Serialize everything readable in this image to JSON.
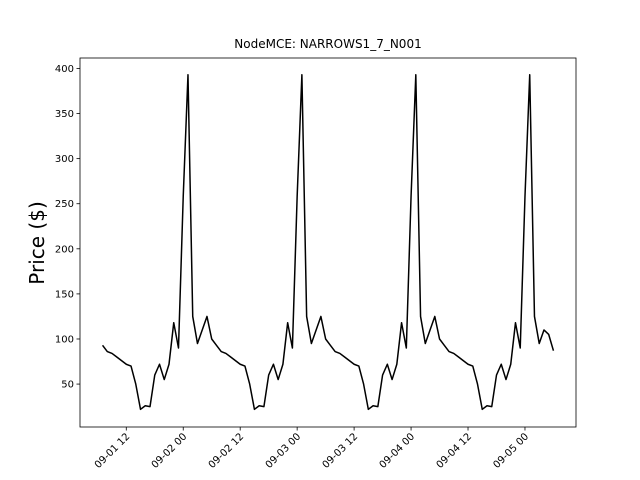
{
  "chart_data": {
    "type": "line",
    "title": "NodeMCE: NARROWS1_7_N001",
    "y_label": "Price ($)",
    "x": [
      7,
      8,
      9,
      10,
      11,
      12,
      13,
      14,
      15,
      16,
      17,
      18,
      19,
      20,
      21,
      22,
      23,
      24,
      25,
      26,
      27,
      28,
      29,
      30,
      31,
      32,
      33,
      34,
      35,
      36,
      37,
      38,
      39,
      40,
      41,
      42,
      43,
      44,
      45,
      46,
      47,
      48,
      49,
      50,
      51,
      52,
      53,
      54,
      55,
      56,
      57,
      58,
      59,
      60,
      61,
      62,
      63,
      64,
      65,
      66,
      67,
      68,
      69,
      70,
      71,
      72,
      73,
      74,
      75,
      76,
      77,
      78,
      79,
      80,
      81,
      82,
      83,
      84,
      85,
      86,
      87,
      88,
      89,
      90,
      91,
      92,
      93,
      94,
      95,
      96,
      97,
      98,
      99,
      100,
      101,
      102
    ],
    "series": [
      {
        "name": "Price",
        "color": "#000000",
        "values": [
          93,
          86,
          84,
          80,
          76,
          72,
          70,
          50,
          22,
          26,
          25,
          60,
          72,
          55,
          72,
          118,
          90,
          258,
          393,
          125,
          95,
          110,
          125,
          100,
          93,
          86,
          84,
          80,
          76,
          72,
          70,
          50,
          22,
          26,
          25,
          60,
          72,
          55,
          72,
          118,
          90,
          258,
          393,
          125,
          95,
          110,
          125,
          100,
          93,
          86,
          84,
          80,
          76,
          72,
          70,
          50,
          22,
          26,
          25,
          60,
          72,
          55,
          72,
          118,
          90,
          258,
          393,
          125,
          95,
          110,
          125,
          100,
          93,
          86,
          84,
          80,
          76,
          72,
          70,
          50,
          22,
          26,
          25,
          60,
          72,
          55,
          72,
          118,
          90,
          258,
          393,
          125,
          95,
          110,
          105,
          87
        ]
      }
    ],
    "xlim": [
      2.25,
      106.75
    ],
    "xticks": [
      {
        "value": 12,
        "label": "09-01 12"
      },
      {
        "value": 24,
        "label": "09-02 00"
      },
      {
        "value": 36,
        "label": "09-02 12"
      },
      {
        "value": 48,
        "label": "09-03 00"
      },
      {
        "value": 60,
        "label": "09-03 12"
      },
      {
        "value": 72,
        "label": "09-04 00"
      },
      {
        "value": 84,
        "label": "09-04 12"
      },
      {
        "value": 96,
        "label": "09-05 00"
      }
    ],
    "ylim": [
      2.4,
      411.6
    ],
    "yticks": [
      50,
      100,
      150,
      200,
      250,
      300,
      350,
      400
    ]
  }
}
